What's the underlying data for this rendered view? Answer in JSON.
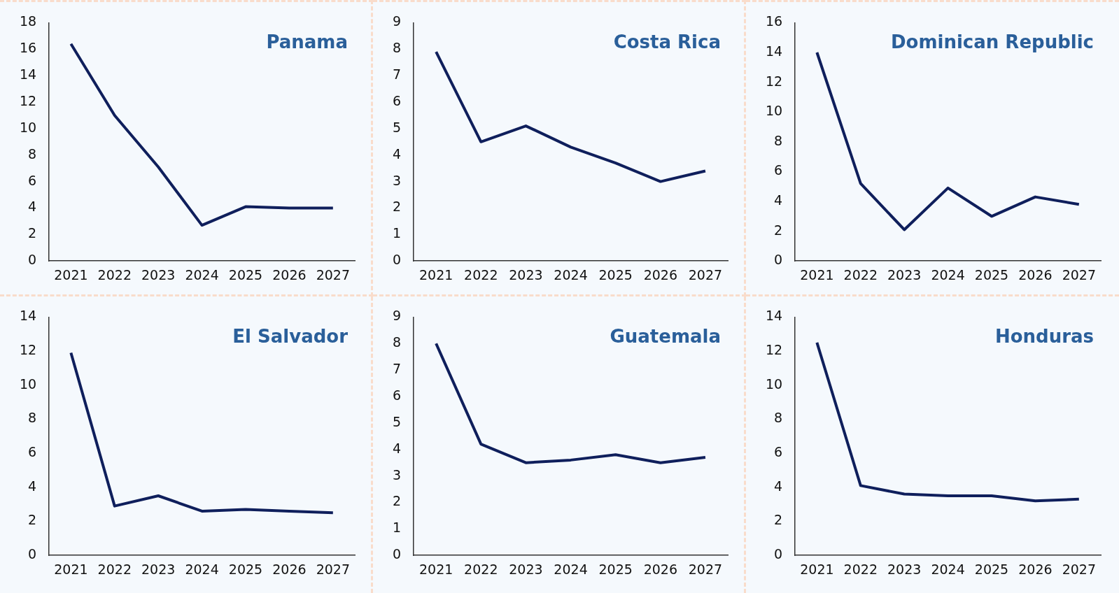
{
  "chart_data": [
    {
      "type": "line",
      "title": "Panama",
      "categories": [
        "2021",
        "2022",
        "2023",
        "2024",
        "2025",
        "2026",
        "2027"
      ],
      "series": [
        {
          "color": "#0f1f5c",
          "values": [
            16.4,
            11.0,
            7.1,
            2.7,
            4.1,
            4.0,
            4.0
          ]
        }
      ],
      "ylim": [
        0,
        18
      ],
      "yticks": [
        0,
        2,
        4,
        6,
        8,
        10,
        12,
        14,
        16,
        18
      ]
    },
    {
      "type": "line",
      "title": "Costa Rica",
      "categories": [
        "2021",
        "2022",
        "2023",
        "2024",
        "2025",
        "2026",
        "2027"
      ],
      "series": [
        {
          "color": "#0f1f5c",
          "values": [
            7.9,
            4.5,
            5.1,
            4.3,
            3.7,
            3.0,
            3.4
          ]
        }
      ],
      "ylim": [
        0,
        9
      ],
      "yticks": [
        0,
        1,
        2,
        3,
        4,
        5,
        6,
        7,
        8,
        9
      ]
    },
    {
      "type": "line",
      "title": "Dominican Republic",
      "categories": [
        "2021",
        "2022",
        "2023",
        "2024",
        "2025",
        "2026",
        "2027"
      ],
      "series": [
        {
          "color": "#0f1f5c",
          "values": [
            14.0,
            5.2,
            2.1,
            4.9,
            3.0,
            4.3,
            3.8
          ]
        }
      ],
      "ylim": [
        0,
        16
      ],
      "yticks": [
        0,
        2,
        4,
        6,
        8,
        10,
        12,
        14,
        16
      ]
    },
    {
      "type": "line",
      "title": "El Salvador",
      "categories": [
        "2021",
        "2022",
        "2023",
        "2024",
        "2025",
        "2026",
        "2027"
      ],
      "series": [
        {
          "color": "#0f1f5c",
          "values": [
            11.9,
            2.9,
            3.5,
            2.6,
            2.7,
            2.6,
            2.5
          ]
        }
      ],
      "ylim": [
        0,
        14
      ],
      "yticks": [
        0,
        2,
        4,
        6,
        8,
        10,
        12,
        14
      ]
    },
    {
      "type": "line",
      "title": "Guatemala",
      "categories": [
        "2021",
        "2022",
        "2023",
        "2024",
        "2025",
        "2026",
        "2027"
      ],
      "series": [
        {
          "color": "#0f1f5c",
          "values": [
            8.0,
            4.2,
            3.5,
            3.6,
            3.8,
            3.5,
            3.7
          ]
        }
      ],
      "ylim": [
        0,
        9
      ],
      "yticks": [
        0,
        1,
        2,
        3,
        4,
        5,
        6,
        7,
        8,
        9
      ]
    },
    {
      "type": "line",
      "title": "Honduras",
      "categories": [
        "2021",
        "2022",
        "2023",
        "2024",
        "2025",
        "2026",
        "2027"
      ],
      "series": [
        {
          "color": "#0f1f5c",
          "values": [
            12.5,
            4.1,
            3.6,
            3.5,
            3.5,
            3.2,
            3.3
          ]
        }
      ],
      "ylim": [
        0,
        14
      ],
      "yticks": [
        0,
        2,
        4,
        6,
        8,
        10,
        12,
        14
      ]
    }
  ]
}
